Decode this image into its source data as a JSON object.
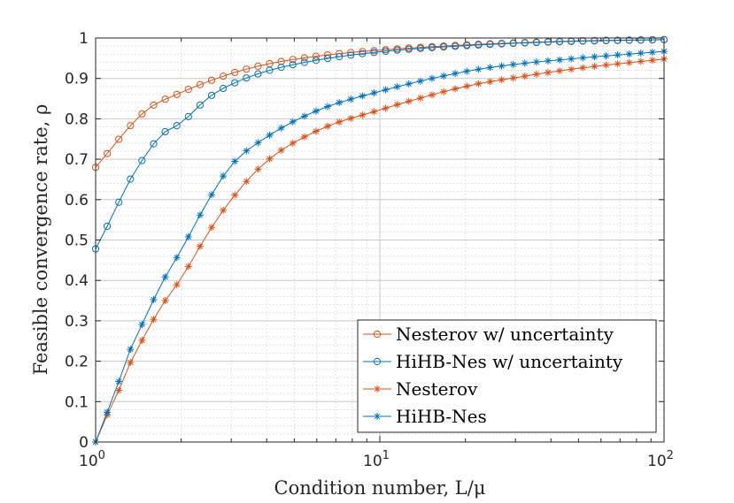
{
  "chart_data": {
    "type": "line",
    "title": "",
    "xlabel": "Condition number, L/μ",
    "ylabel": "Feasible convergence rate, ρ",
    "xscale": "log",
    "xlim": [
      1,
      100
    ],
    "ylim": [
      0,
      1
    ],
    "grid": true,
    "minor_grid": true,
    "legend_position": "bottom-right",
    "yticks": [
      "0",
      "0.1",
      "0.2",
      "0.3",
      "0.4",
      "0.5",
      "0.6",
      "0.7",
      "0.8",
      "0.9",
      "1"
    ],
    "xticks": [
      {
        "base": "10",
        "exp": "0"
      },
      {
        "base": "10",
        "exp": "1"
      },
      {
        "base": "10",
        "exp": "2"
      }
    ],
    "series": [
      {
        "name": "Nesterov w/ uncertainty",
        "color": "#D95319",
        "marker": "circle",
        "x": [
          1,
          1.5,
          2,
          3,
          4,
          6,
          10,
          20,
          30,
          50,
          100
        ],
        "y": [
          0.68,
          0.82,
          0.865,
          0.912,
          0.935,
          0.955,
          0.97,
          0.983,
          0.988,
          0.993,
          0.996
        ]
      },
      {
        "name": "HiHB-Nes w/ uncertainty",
        "color": "#0072BD",
        "marker": "circle",
        "x": [
          1,
          1.1,
          1.2,
          1.3,
          1.5,
          1.7,
          2,
          2.5,
          3,
          4,
          6,
          10,
          20,
          30,
          50,
          100
        ],
        "y": [
          0.478,
          0.535,
          0.59,
          0.64,
          0.71,
          0.76,
          0.79,
          0.853,
          0.885,
          0.918,
          0.945,
          0.966,
          0.981,
          0.987,
          0.992,
          0.996
        ]
      },
      {
        "name": "Nesterov",
        "color": "#D95319",
        "marker": "star",
        "x": [
          1,
          1.1,
          1.2,
          1.3,
          1.5,
          1.7,
          2,
          2.5,
          3,
          4,
          6,
          10,
          20,
          30,
          50,
          100
        ],
        "y": [
          0,
          0.068,
          0.124,
          0.184,
          0.268,
          0.335,
          0.405,
          0.52,
          0.6,
          0.695,
          0.77,
          0.822,
          0.88,
          0.902,
          0.925,
          0.948
        ]
      },
      {
        "name": "HiHB-Nes",
        "color": "#0072BD",
        "marker": "star",
        "x": [
          1,
          1.1,
          1.2,
          1.3,
          1.5,
          1.7,
          2,
          2.5,
          3,
          4,
          6,
          10,
          20,
          30,
          50,
          100
        ],
        "y": [
          0,
          0.075,
          0.145,
          0.215,
          0.31,
          0.39,
          0.475,
          0.6,
          0.685,
          0.755,
          0.82,
          0.868,
          0.917,
          0.935,
          0.95,
          0.967
        ]
      }
    ]
  }
}
